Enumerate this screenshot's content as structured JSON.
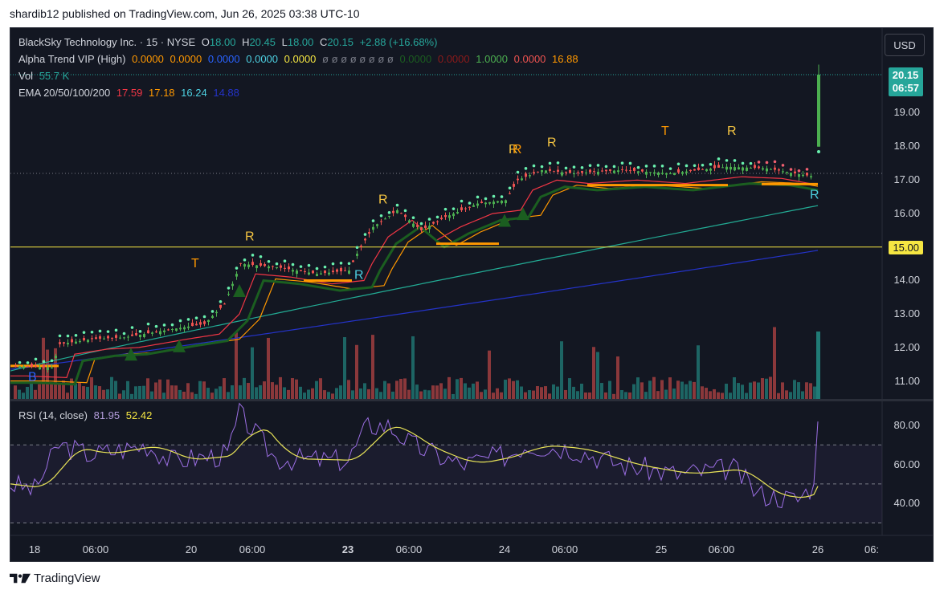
{
  "header": {
    "published": "shardib12 published on TradingView.com, Jun 26, 2025 03:38 UTC-10"
  },
  "legend": {
    "symbol": "BlackSky Technology Inc. · 15 · NYSE",
    "o_label": "O",
    "o": "18.00",
    "h_label": "H",
    "h": "20.45",
    "l_label": "L",
    "l": "18.00",
    "c_label": "C",
    "c": "20.15",
    "change": "+2.88 (+16.68%)",
    "alpha_name": "Alpha Trend VIP (High)",
    "alpha_v1": "0.0000",
    "alpha_v2": "0.0000",
    "alpha_v3": "0.0000",
    "alpha_v4": "0.0000",
    "alpha_v5": "0.0000",
    "alpha_empty": "ø ø ø ø ø ø ø ø",
    "alpha_v6": "0.0000",
    "alpha_v7": "0.0000",
    "alpha_v8": "1.0000",
    "alpha_v9": "0.0000",
    "alpha_v10": "16.88",
    "vol_name": "Vol",
    "vol": "55.7 K",
    "ema_name": "EMA 20/50/100/200",
    "ema20": "17.59",
    "ema50": "17.18",
    "ema100": "16.24",
    "ema200": "14.88",
    "rsi_name": "RSI (14, close)",
    "rsi": "81.95",
    "rsi_ma": "52.42"
  },
  "toolbar": {
    "currency_button": "USD"
  },
  "price_axis": {
    "labels": [
      "19.00",
      "18.00",
      "17.00",
      "16.00",
      "14.00",
      "13.00",
      "12.00",
      "11.00"
    ],
    "last_price": "20.15",
    "countdown": "06:57",
    "level": "15.00"
  },
  "rsi_axis": {
    "labels": [
      "80.00",
      "60.00",
      "40.00"
    ]
  },
  "time_axis": {
    "labels": [
      "18",
      "06:00",
      "20",
      "06:00",
      "23",
      "06:00",
      "24",
      "06:00",
      "25",
      "06:00",
      "26",
      "06:"
    ]
  },
  "signals": {
    "b": "B",
    "t1": "T",
    "r1": "R",
    "r2": "R",
    "r3": "R",
    "r4": "R",
    "r5": "R",
    "t2": "T",
    "r6": "R",
    "r7": "R",
    "r8": "R",
    "r9": "R"
  },
  "colors": {
    "background": "#131722",
    "up": "#26a69a",
    "down": "#ef5350",
    "bull_candle": "#4caf50",
    "ema20": "#f23645",
    "ema50": "#ff9800",
    "ema100": "#22ab94",
    "ema200": "#1e3bb3",
    "alpha": "#1b5e20",
    "level": "#f5e642",
    "rsi": "#7e57c2",
    "rsi_ma": "#e8e358"
  },
  "footer": {
    "brand": "TradingView"
  },
  "chart_data": {
    "type": "candlestick",
    "title": "BlackSky Technology Inc. · 15 · NYSE",
    "ylim": [
      10.5,
      20.6
    ],
    "ohlc_last": {
      "open": 18.0,
      "high": 20.45,
      "low": 18.0,
      "close": 20.15
    },
    "level_line": 15.0,
    "rsi_ylim": [
      30,
      90
    ],
    "rsi_last": 81.95,
    "rsi_ma_last": 52.42
  }
}
